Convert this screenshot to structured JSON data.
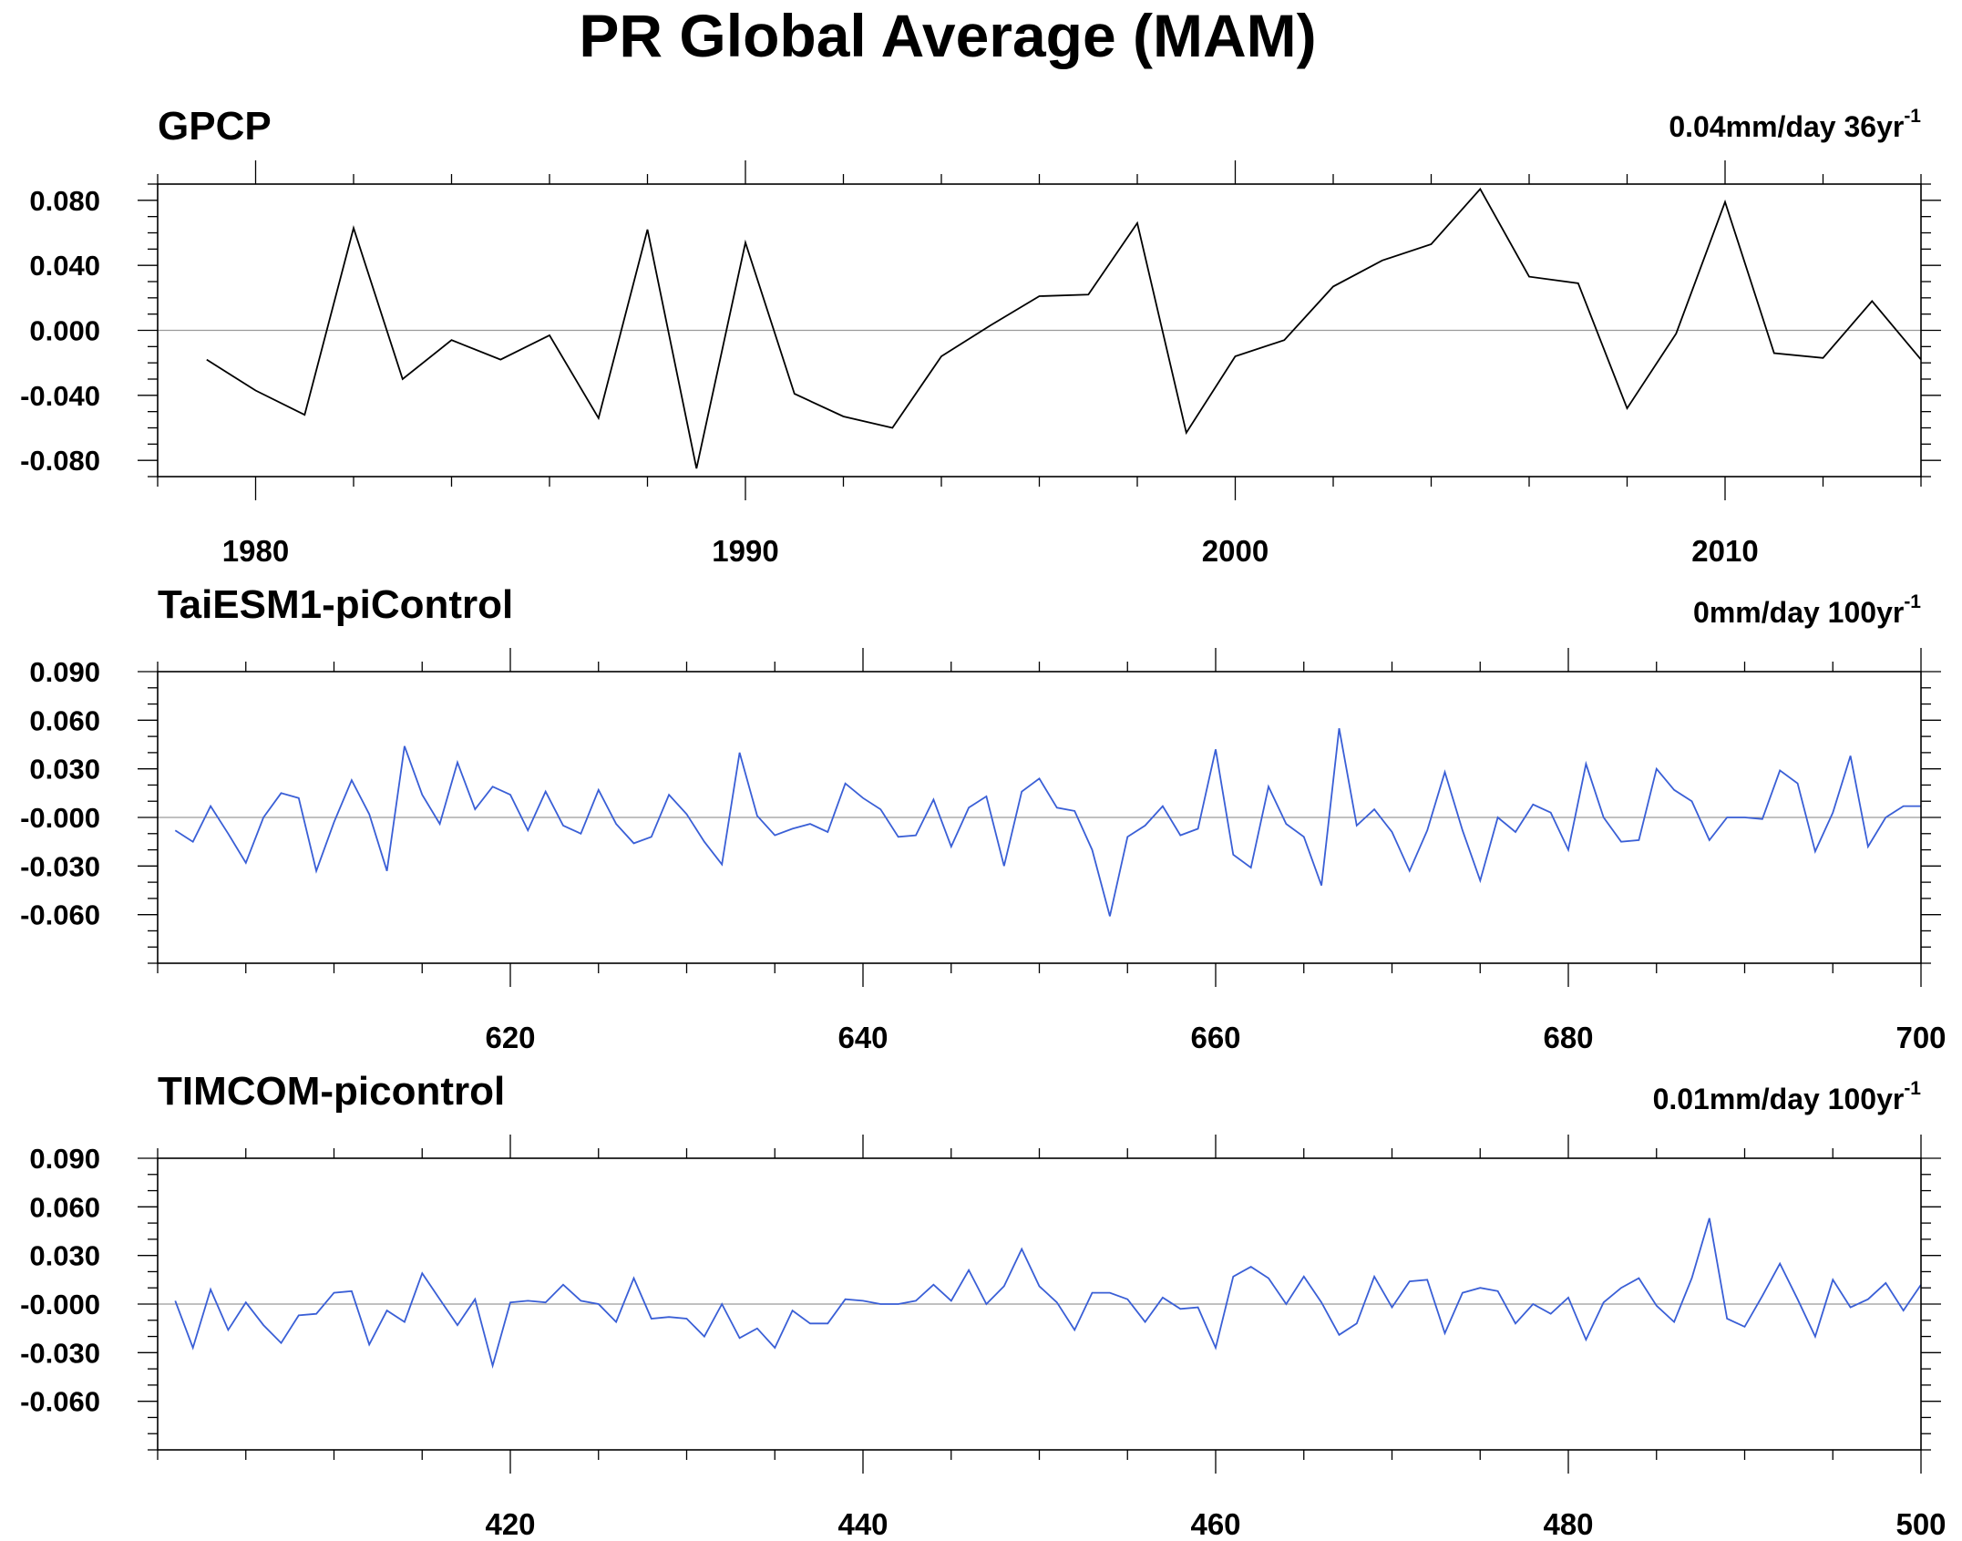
{
  "figure": {
    "title": "PR Global Average (MAM)"
  },
  "chart_data": [
    {
      "type": "line",
      "title": "GPCP",
      "trend_label": "0.04mm/day 36yr",
      "trend_sup": "-1",
      "xlim": [
        1978,
        2014
      ],
      "ylim": [
        -0.09,
        0.09
      ],
      "yticks": [
        -0.08,
        -0.04,
        0.0,
        0.04,
        0.08
      ],
      "ytick_labels": [
        "-0.080",
        "-0.040",
        "0.000",
        "0.040",
        "0.080"
      ],
      "xticks": [
        1980,
        1990,
        2000,
        2010
      ],
      "xtick_labels": [
        "1980",
        "1990",
        "2000",
        "2010"
      ],
      "x_minor_step": 2,
      "y_minor_step": 0.01,
      "series": [
        {
          "color": "#000000",
          "x": [
            1979,
            1980,
            1981,
            1982,
            1983,
            1984,
            1985,
            1986,
            1987,
            1988,
            1989,
            1990,
            1991,
            1992,
            1993,
            1994,
            1995,
            1996,
            1997,
            1998,
            1999,
            2000,
            2001,
            2002,
            2003,
            2004,
            2005,
            2006,
            2007,
            2008,
            2009,
            2010,
            2011,
            2012,
            2013,
            2014
          ],
          "values": [
            -0.018,
            -0.037,
            -0.052,
            0.063,
            -0.03,
            -0.006,
            -0.018,
            -0.003,
            -0.054,
            0.062,
            -0.085,
            0.054,
            -0.039,
            -0.053,
            -0.06,
            -0.016,
            0.003,
            0.021,
            0.022,
            0.066,
            -0.063,
            -0.016,
            -0.006,
            0.027,
            0.043,
            0.053,
            0.087,
            0.033,
            0.029,
            -0.048,
            -0.002,
            0.079,
            -0.014,
            -0.017,
            0.018,
            -0.018
          ]
        }
      ]
    },
    {
      "type": "line",
      "title": "TaiESM1-piControl",
      "trend_label": "0mm/day 100yr",
      "trend_sup": "-1",
      "xlim": [
        600,
        700
      ],
      "ylim": [
        -0.09,
        0.09
      ],
      "yticks": [
        -0.06,
        -0.03,
        0.0,
        0.03,
        0.06,
        0.09
      ],
      "ytick_labels": [
        "-0.060",
        "-0.030",
        "-0.000",
        "0.030",
        "0.060",
        "0.090"
      ],
      "xticks": [
        620,
        640,
        660,
        680,
        700
      ],
      "xtick_labels": [
        "620",
        "640",
        "660",
        "680",
        "700"
      ],
      "x_minor_step": 5,
      "y_minor_step": 0.01,
      "series": [
        {
          "color": "#3a5fd6",
          "x_start": 601,
          "values": [
            -0.008,
            -0.015,
            0.007,
            -0.01,
            -0.028,
            0.0,
            0.015,
            0.012,
            -0.033,
            -0.003,
            0.023,
            0.002,
            -0.033,
            0.044,
            0.014,
            -0.004,
            0.034,
            0.005,
            0.019,
            0.014,
            -0.008,
            0.016,
            -0.005,
            -0.01,
            0.017,
            -0.004,
            -0.016,
            -0.012,
            0.014,
            0.002,
            -0.015,
            -0.029,
            0.04,
            0.001,
            -0.011,
            -0.007,
            -0.004,
            -0.009,
            0.021,
            0.012,
            0.005,
            -0.012,
            -0.011,
            0.011,
            -0.018,
            0.006,
            0.013,
            -0.03,
            0.016,
            0.024,
            0.006,
            0.004,
            -0.02,
            -0.061,
            -0.012,
            -0.005,
            0.007,
            -0.011,
            -0.007,
            0.042,
            -0.023,
            -0.031,
            0.019,
            -0.004,
            -0.012,
            -0.042,
            0.055,
            -0.005,
            0.005,
            -0.009,
            -0.033,
            -0.008,
            0.028,
            -0.008,
            -0.039,
            0.0,
            -0.009,
            0.008,
            0.003,
            -0.02,
            0.033,
            0.0,
            -0.015,
            -0.014,
            0.03,
            0.017,
            0.01,
            -0.014,
            0.0,
            0.0,
            -0.001,
            0.029,
            0.021,
            -0.021,
            0.003,
            0.038,
            -0.018,
            0.0,
            0.007,
            0.007
          ]
        }
      ]
    },
    {
      "type": "line",
      "title": "TIMCOM-picontrol",
      "trend_label": "0.01mm/day 100yr",
      "trend_sup": "-1",
      "xlim": [
        400,
        500
      ],
      "ylim": [
        -0.09,
        0.09
      ],
      "yticks": [
        -0.06,
        -0.03,
        0.0,
        0.03,
        0.06,
        0.09
      ],
      "ytick_labels": [
        "-0.060",
        "-0.030",
        "-0.000",
        "0.030",
        "0.060",
        "0.090"
      ],
      "xticks": [
        420,
        440,
        460,
        480,
        500
      ],
      "xtick_labels": [
        "420",
        "440",
        "460",
        "480",
        "500"
      ],
      "x_minor_step": 5,
      "y_minor_step": 0.01,
      "series": [
        {
          "color": "#3a5fd6",
          "x_start": 401,
          "values": [
            0.002,
            -0.027,
            0.009,
            -0.016,
            0.001,
            -0.013,
            -0.024,
            -0.007,
            -0.006,
            0.007,
            0.008,
            -0.025,
            -0.004,
            -0.011,
            0.019,
            0.003,
            -0.013,
            0.003,
            -0.038,
            0.001,
            0.002,
            0.001,
            0.012,
            0.002,
            0.0,
            -0.011,
            0.016,
            -0.009,
            -0.008,
            -0.009,
            -0.02,
            0.0,
            -0.021,
            -0.015,
            -0.027,
            -0.004,
            -0.012,
            -0.012,
            0.003,
            0.002,
            0.0,
            0.0,
            0.002,
            0.012,
            0.002,
            0.021,
            0.0,
            0.011,
            0.034,
            0.011,
            0.001,
            -0.016,
            0.007,
            0.007,
            0.003,
            -0.011,
            0.004,
            -0.003,
            -0.002,
            -0.027,
            0.017,
            0.023,
            0.016,
            0.0,
            0.017,
            0.001,
            -0.019,
            -0.012,
            0.017,
            -0.002,
            0.014,
            0.015,
            -0.018,
            0.007,
            0.01,
            0.008,
            -0.012,
            0.0,
            -0.006,
            0.004,
            -0.022,
            0.001,
            0.01,
            0.016,
            -0.001,
            -0.011,
            0.016,
            0.053,
            -0.009,
            -0.014,
            0.005,
            0.025,
            0.003,
            -0.02,
            0.015,
            -0.002,
            0.003,
            0.013,
            -0.004,
            0.012
          ]
        }
      ]
    }
  ]
}
